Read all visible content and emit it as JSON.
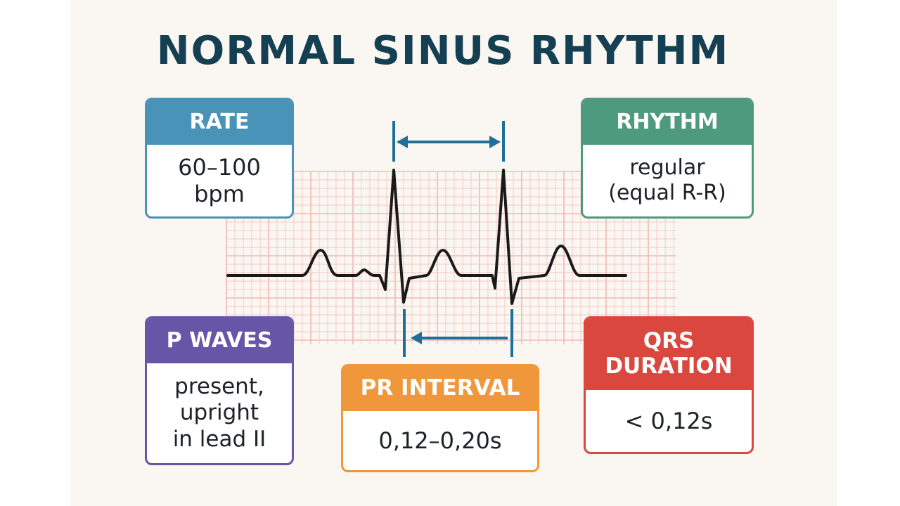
{
  "title": "NORMAL SINUS RHYTHM",
  "colors": {
    "title": "#153f52",
    "grid": "#f4b8b2",
    "trace": "#1a1a1a",
    "marker": "#1f6f9a",
    "rate": "#4a93b8",
    "rhythm": "#4e9a7e",
    "p_waves": "#6656a8",
    "pr_interval": "#ef973a",
    "qrs_duration": "#d9473f"
  },
  "cards": {
    "rate": {
      "header": "RATE",
      "body": "60–100\nbpm"
    },
    "rhythm": {
      "header": "RHYTHM",
      "body": "regular\n(equal R-R)"
    },
    "p_waves": {
      "header": "P WAVES",
      "body": "present,\nupright\nin lead II"
    },
    "pr_interval": {
      "header": "PR INTERVAL",
      "body": "0,12–0,20s"
    },
    "qrs_duration": {
      "header": "QRS\nDURATION",
      "body": "< 0,12s"
    }
  },
  "diagram": {
    "rr_arrow": "double-headed",
    "pr_arrow": "left-pointing",
    "icons": [
      "ecg-grid",
      "ecg-trace",
      "rr-interval-arrow",
      "pr-interval-arrow"
    ]
  }
}
